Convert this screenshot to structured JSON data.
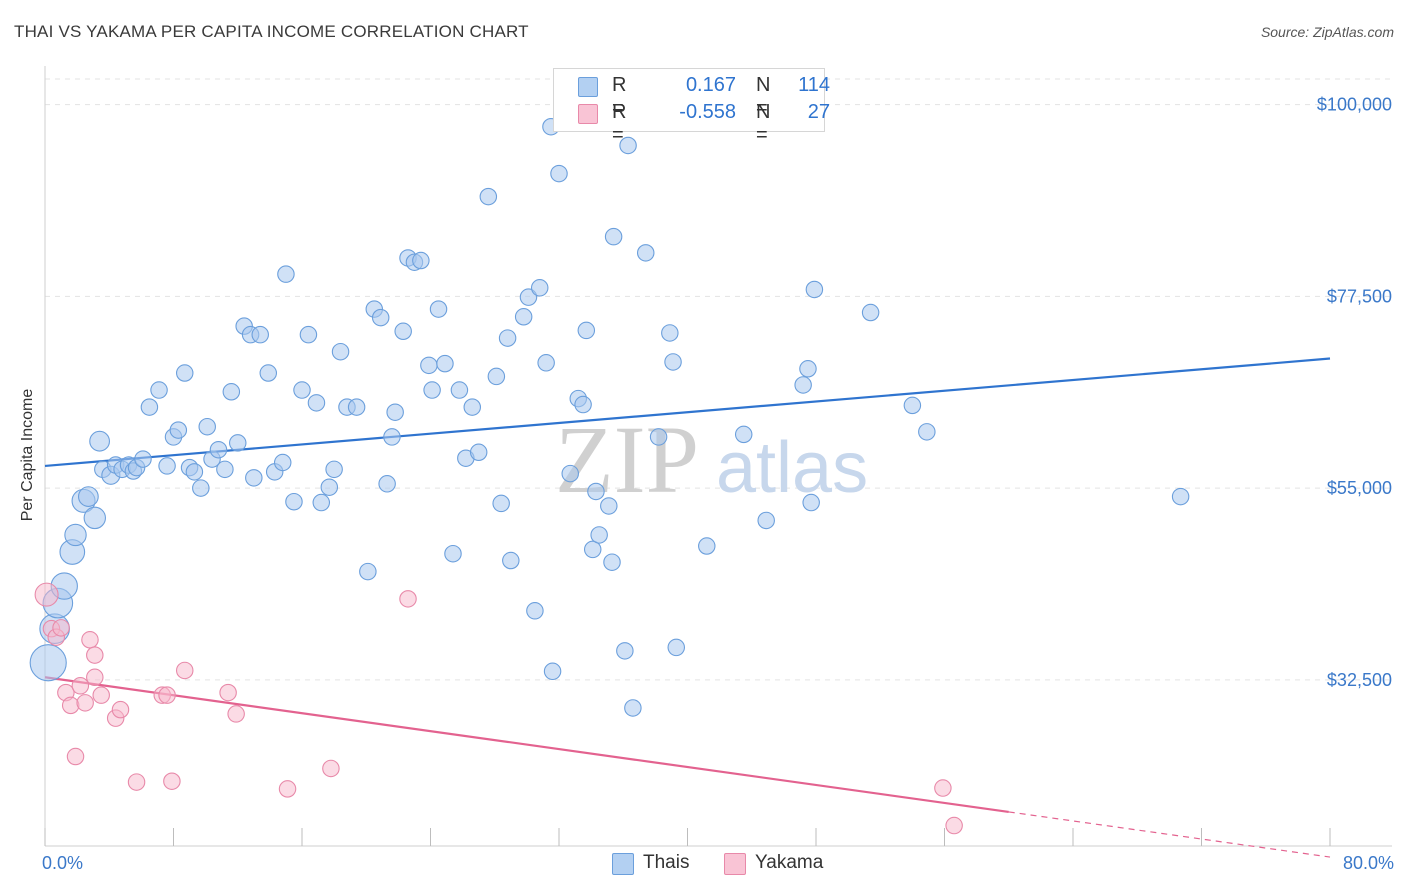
{
  "title": "THAI VS YAKAMA PER CAPITA INCOME CORRELATION CHART",
  "source": "Source: ZipAtlas.com",
  "watermark": {
    "zip": "ZIP",
    "atlas": "atlas"
  },
  "legend": {
    "rows": [
      {
        "r_label": "R =",
        "r_value": "0.167",
        "n_label": "N =",
        "n_value": "114"
      },
      {
        "r_label": "R =",
        "r_value": "-0.558",
        "n_label": "N =",
        "n_value": "27"
      }
    ]
  },
  "bottom_legend": [
    "Thais",
    "Yakama"
  ],
  "colors": {
    "thai_fill": "#a9c9ef",
    "thai_stroke": "#6b9fdc",
    "thai_line": "#2f74cf",
    "yakama_fill": "#f7b8cc",
    "yakama_stroke": "#e889a9",
    "yakama_line": "#e3628f",
    "axis_text": "#3a78c9",
    "grid": "#e3e3e3"
  },
  "chart_data": {
    "type": "scatter",
    "title": "THAI VS YAKAMA PER CAPITA INCOME CORRELATION CHART",
    "xlabel": "",
    "ylabel": "Per Capita Income",
    "xlim": [
      0,
      80
    ],
    "ylim": [
      13000,
      103000
    ],
    "x_tick_labels": [
      "0.0%",
      "80.0%"
    ],
    "y_ticks": [
      32500,
      55000,
      77500,
      100000
    ],
    "y_tick_labels": [
      "$32,500",
      "$55,000",
      "$77,500",
      "$100,000"
    ],
    "grid": "horizontal dashed",
    "legend_placement": "top-center",
    "series": [
      {
        "name": "Thais",
        "r": 0.167,
        "n": 114,
        "trend": {
          "x": [
            0,
            80
          ],
          "y": [
            57600,
            70200
          ]
        },
        "points": [
          [
            0.2,
            34500,
            22
          ],
          [
            0.6,
            38500,
            18
          ],
          [
            0.8,
            41500,
            18
          ],
          [
            1.2,
            43500,
            16
          ],
          [
            1.7,
            47500,
            15
          ],
          [
            1.9,
            49500,
            13
          ],
          [
            2.4,
            53500,
            14
          ],
          [
            2.7,
            54000,
            12
          ],
          [
            3.1,
            51500,
            13
          ],
          [
            3.4,
            60500,
            12
          ],
          [
            3.6,
            57200,
            10
          ],
          [
            4.1,
            56500,
            11
          ],
          [
            4.4,
            57700,
            10
          ],
          [
            4.8,
            57200,
            10
          ],
          [
            5.2,
            57700,
            10
          ],
          [
            5.5,
            57000,
            10
          ],
          [
            5.7,
            57400,
            10
          ],
          [
            6.1,
            58400,
            10
          ],
          [
            6.5,
            64500,
            10
          ],
          [
            7.1,
            66500,
            10
          ],
          [
            7.6,
            57600,
            10
          ],
          [
            8.0,
            61000,
            10
          ],
          [
            8.3,
            61800,
            10
          ],
          [
            8.7,
            68500,
            10
          ],
          [
            9.0,
            57400,
            10
          ],
          [
            9.3,
            56900,
            10
          ],
          [
            9.7,
            55000,
            10
          ],
          [
            10.1,
            62200,
            10
          ],
          [
            10.4,
            58400,
            10
          ],
          [
            10.8,
            59500,
            10
          ],
          [
            11.2,
            57200,
            10
          ],
          [
            11.6,
            66300,
            10
          ],
          [
            12.0,
            60300,
            10
          ],
          [
            12.4,
            74000,
            10
          ],
          [
            12.8,
            73000,
            10
          ],
          [
            13.0,
            56200,
            10
          ],
          [
            13.4,
            73000,
            10
          ],
          [
            13.9,
            68500,
            10
          ],
          [
            14.3,
            56900,
            10
          ],
          [
            14.8,
            58000,
            10
          ],
          [
            15.0,
            80100,
            10
          ],
          [
            15.5,
            53400,
            10
          ],
          [
            16.0,
            66500,
            10
          ],
          [
            16.4,
            73000,
            10
          ],
          [
            16.9,
            65000,
            10
          ],
          [
            17.2,
            53300,
            10
          ],
          [
            17.7,
            55100,
            10
          ],
          [
            18.0,
            57200,
            10
          ],
          [
            18.4,
            71000,
            10
          ],
          [
            18.8,
            64500,
            10
          ],
          [
            19.4,
            64500,
            10
          ],
          [
            20.1,
            45200,
            10
          ],
          [
            20.5,
            76000,
            10
          ],
          [
            20.9,
            75000,
            10
          ],
          [
            21.3,
            55500,
            10
          ],
          [
            21.6,
            61000,
            10
          ],
          [
            21.8,
            63900,
            10
          ],
          [
            22.3,
            73400,
            10
          ],
          [
            22.6,
            82000,
            10
          ],
          [
            23.0,
            81500,
            10
          ],
          [
            23.4,
            81700,
            10
          ],
          [
            23.9,
            69400,
            10
          ],
          [
            24.1,
            66500,
            10
          ],
          [
            24.5,
            76000,
            10
          ],
          [
            24.9,
            69600,
            10
          ],
          [
            25.4,
            47300,
            10
          ],
          [
            25.8,
            66500,
            10
          ],
          [
            26.2,
            58500,
            10
          ],
          [
            26.6,
            64500,
            10
          ],
          [
            27.0,
            59200,
            10
          ],
          [
            27.6,
            89200,
            10
          ],
          [
            28.1,
            68100,
            10
          ],
          [
            28.4,
            53200,
            10
          ],
          [
            28.8,
            72600,
            10
          ],
          [
            29.0,
            46500,
            10
          ],
          [
            29.8,
            75100,
            10
          ],
          [
            30.1,
            77400,
            10
          ],
          [
            30.5,
            40600,
            10
          ],
          [
            30.8,
            78500,
            10
          ],
          [
            31.2,
            69700,
            10
          ],
          [
            31.5,
            97400,
            10
          ],
          [
            31.6,
            33500,
            10
          ],
          [
            32.0,
            91900,
            10
          ],
          [
            32.7,
            56700,
            10
          ],
          [
            33.2,
            65500,
            10
          ],
          [
            33.5,
            64800,
            10
          ],
          [
            33.7,
            73500,
            10
          ],
          [
            34.1,
            47800,
            10
          ],
          [
            34.3,
            54600,
            10
          ],
          [
            34.5,
            49500,
            10
          ],
          [
            35.1,
            52900,
            10
          ],
          [
            35.3,
            46300,
            10
          ],
          [
            35.4,
            84500,
            10
          ],
          [
            36.1,
            35900,
            10
          ],
          [
            36.3,
            95200,
            10
          ],
          [
            36.6,
            29200,
            10
          ],
          [
            37.4,
            82600,
            10
          ],
          [
            38.2,
            61000,
            10
          ],
          [
            38.9,
            73200,
            10
          ],
          [
            39.1,
            69800,
            10
          ],
          [
            39.3,
            36300,
            10
          ],
          [
            41.2,
            48200,
            10
          ],
          [
            43.5,
            61300,
            10
          ],
          [
            44.9,
            51200,
            10
          ],
          [
            47.2,
            67100,
            10
          ],
          [
            47.5,
            69000,
            10
          ],
          [
            47.7,
            53300,
            10
          ],
          [
            47.9,
            78300,
            10
          ],
          [
            51.4,
            75600,
            10
          ],
          [
            54.0,
            64700,
            10
          ],
          [
            54.9,
            61600,
            10
          ],
          [
            70.7,
            54000,
            10
          ]
        ]
      },
      {
        "name": "Yakama",
        "r": -0.558,
        "n": 27,
        "trend": {
          "x": [
            0,
            60
          ],
          "y": [
            32800,
            17000
          ]
        },
        "trend_dashed": {
          "x": [
            60,
            80
          ],
          "y": [
            17000,
            11700
          ]
        },
        "points": [
          [
            0.1,
            42500,
            14
          ],
          [
            0.4,
            38500,
            10
          ],
          [
            0.7,
            37500,
            10
          ],
          [
            1.0,
            38600,
            10
          ],
          [
            1.3,
            31000,
            10
          ],
          [
            1.6,
            29500,
            10
          ],
          [
            1.9,
            23500,
            10
          ],
          [
            2.2,
            31800,
            10
          ],
          [
            2.5,
            29800,
            10
          ],
          [
            2.8,
            37200,
            10
          ],
          [
            3.1,
            32800,
            10
          ],
          [
            3.1,
            35400,
            10
          ],
          [
            3.5,
            30700,
            10
          ],
          [
            4.4,
            28000,
            10
          ],
          [
            4.7,
            29000,
            10
          ],
          [
            5.7,
            20500,
            10
          ],
          [
            7.3,
            30700,
            10
          ],
          [
            7.6,
            30700,
            10
          ],
          [
            7.9,
            20600,
            10
          ],
          [
            8.7,
            33600,
            10
          ],
          [
            11.4,
            31000,
            10
          ],
          [
            11.9,
            28500,
            10
          ],
          [
            15.1,
            19700,
            10
          ],
          [
            17.8,
            22100,
            10
          ],
          [
            22.6,
            42000,
            10
          ],
          [
            55.9,
            19800,
            10
          ],
          [
            56.6,
            15400,
            10
          ]
        ]
      }
    ]
  }
}
